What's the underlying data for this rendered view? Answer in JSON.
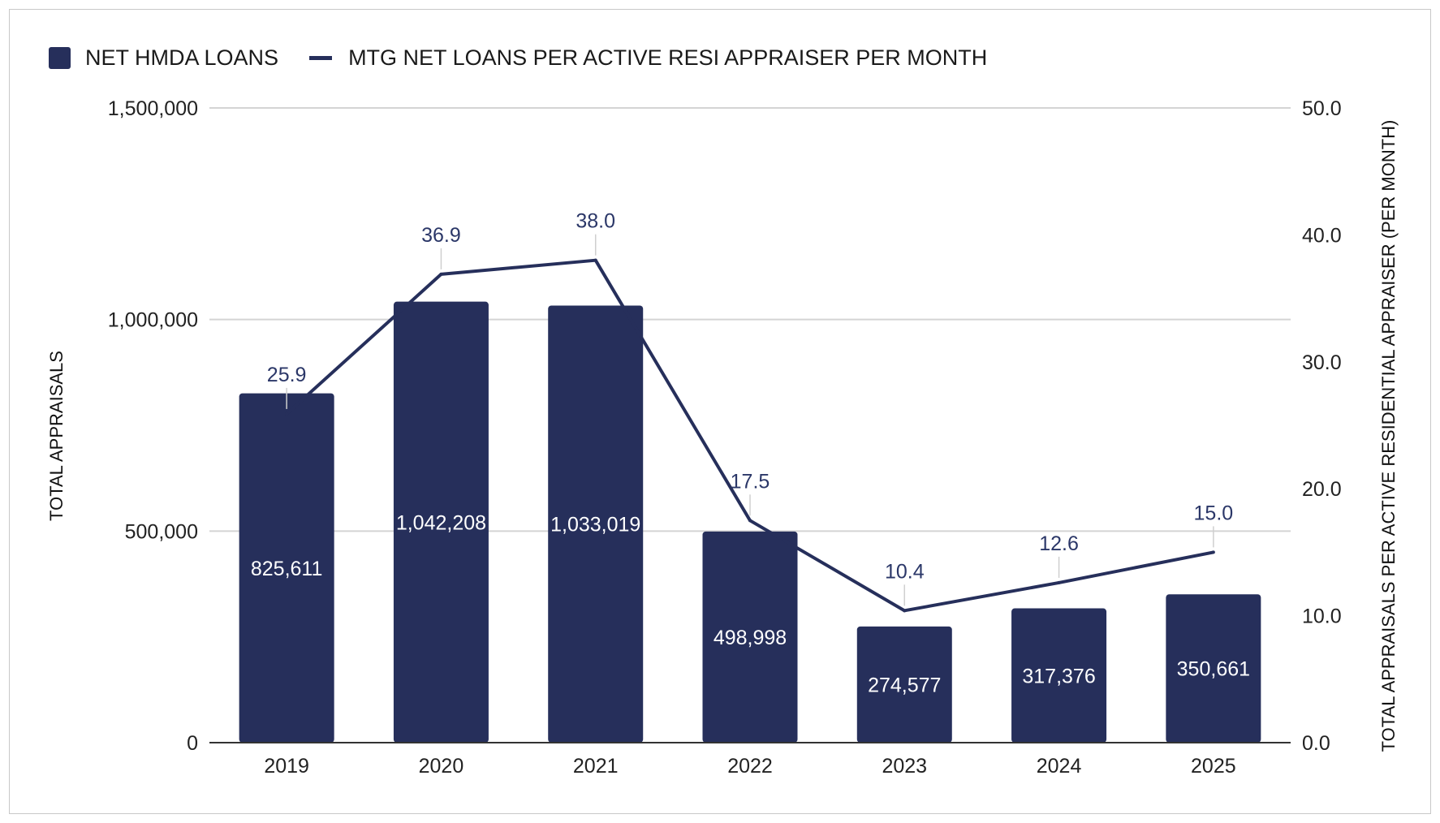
{
  "chart_data": {
    "type": "bar",
    "categories": [
      "2019",
      "2020",
      "2021",
      "2022",
      "2023",
      "2024",
      "2025"
    ],
    "series": [
      {
        "name": "NET HMDA LOANS",
        "type": "bar",
        "axis": "left",
        "values": [
          825611,
          1042208,
          1033019,
          498998,
          274577,
          317376,
          350661
        ],
        "labels": [
          "825,611",
          "1,042,208",
          "1,033,019",
          "498,998",
          "274,577",
          "317,376",
          "350,661"
        ]
      },
      {
        "name": "MTG NET LOANS PER ACTIVE RESI APPRAISER PER MONTH",
        "type": "line",
        "axis": "right",
        "values": [
          25.9,
          36.9,
          38.0,
          17.5,
          10.4,
          12.6,
          15.0
        ],
        "labels": [
          "25.9",
          "36.9",
          "38.0",
          "17.5",
          "10.4",
          "12.6",
          "15.0"
        ]
      }
    ],
    "y_left": {
      "label": "TOTAL APPRAISALS",
      "ylim": [
        0,
        1500000
      ],
      "ticks": [
        0,
        500000,
        1000000,
        1500000
      ],
      "tick_labels": [
        "0",
        "500,000",
        "1,000,000",
        "1,500,000"
      ]
    },
    "y_right": {
      "label": "TOTAL APPRAISALS PER ACTIVE RESIDENTIAL APPRAISER (PER MONTH)",
      "ylim": [
        0,
        50
      ],
      "ticks": [
        0,
        10,
        20,
        30,
        40,
        50
      ],
      "tick_labels": [
        "0.0",
        "10.0",
        "20.0",
        "30.0",
        "40.0",
        "50.0"
      ]
    },
    "xlabel": "",
    "grid": true,
    "legend_position": "top-left",
    "colors": {
      "bar": "#262f5b",
      "line": "#262f5b",
      "line_label": "#2b3768",
      "grid": "#d4d4d4"
    }
  }
}
